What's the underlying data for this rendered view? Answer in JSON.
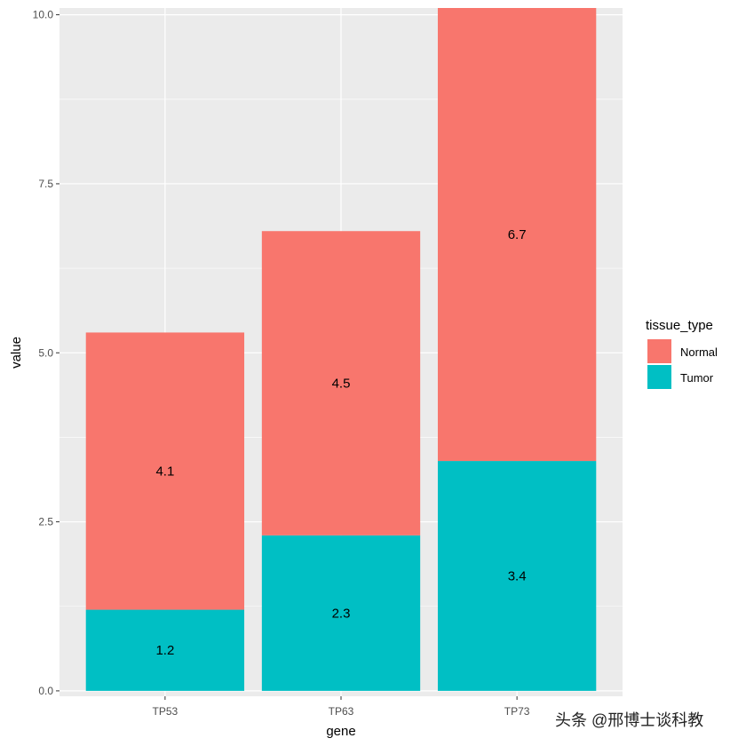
{
  "chart_data": {
    "type": "bar",
    "stacked": true,
    "categories": [
      "TP53",
      "TP63",
      "TP73"
    ],
    "series": [
      {
        "name": "Normal",
        "values": [
          4.1,
          4.5,
          6.7
        ],
        "color": "#F8766D"
      },
      {
        "name": "Tumor",
        "values": [
          1.2,
          2.3,
          3.4
        ],
        "color": "#00BFC4"
      }
    ],
    "data_labels": {
      "Normal": [
        "4.1",
        "4.5",
        "6.7"
      ],
      "Tumor": [
        "1.2",
        "2.3",
        "3.4"
      ]
    },
    "xlabel": "gene",
    "ylabel": "value",
    "ylim": [
      -0.08,
      10.1
    ],
    "yticks": [
      0.0,
      2.5,
      5.0,
      7.5,
      10.0
    ],
    "ytick_labels": [
      "0.0",
      "2.5",
      "5.0",
      "7.5",
      "10.0"
    ],
    "grid": true,
    "legend": {
      "title": "tissue_type",
      "position": "right",
      "labels": [
        "Normal",
        "Tumor"
      ]
    },
    "panel_background": "#EBEBEB",
    "gridline_color": "#FFFFFF"
  },
  "watermark": "头条 @邢博士谈科教"
}
